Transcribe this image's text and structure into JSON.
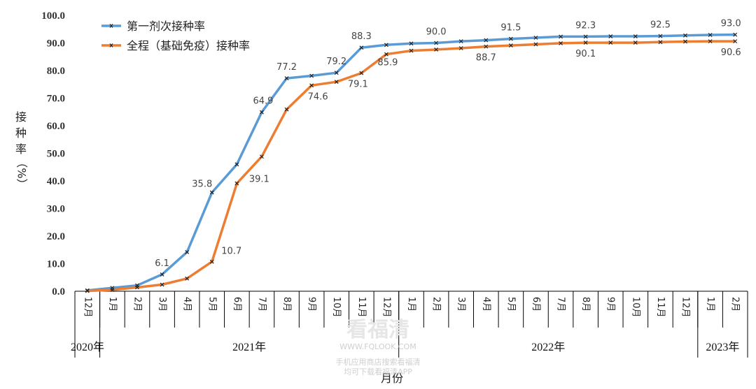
{
  "chart_data": {
    "type": "line",
    "ylabel": "接种率（%）",
    "xlabel": "月份",
    "ylim": [
      0,
      100
    ],
    "y_ticks": [
      "0.0",
      "10.0",
      "20.0",
      "30.0",
      "40.0",
      "50.0",
      "60.0",
      "70.0",
      "80.0",
      "90.0",
      "100.0"
    ],
    "categories": [
      "12月",
      "1月",
      "2月",
      "3月",
      "4月",
      "5月",
      "6月",
      "7月",
      "8月",
      "9月",
      "10月",
      "11月",
      "12月",
      "1月",
      "2月",
      "3月",
      "4月",
      "5月",
      "6月",
      "7月",
      "8月",
      "9月",
      "10月",
      "11月",
      "12月",
      "1月",
      "2月"
    ],
    "year_groups": [
      {
        "label": "2020年",
        "start": 0,
        "end": 0
      },
      {
        "label": "2021年",
        "start": 1,
        "end": 12
      },
      {
        "label": "2022年",
        "start": 13,
        "end": 24
      },
      {
        "label": "2023年",
        "start": 25,
        "end": 26
      }
    ],
    "series": [
      {
        "name": "第一剂次接种率",
        "color": "#5b9bd5",
        "values": [
          0.3,
          1.2,
          2.1,
          6.1,
          14.2,
          35.8,
          46.0,
          64.9,
          77.2,
          78.1,
          79.2,
          88.3,
          89.3,
          89.8,
          90.0,
          90.6,
          91.0,
          91.5,
          91.9,
          92.3,
          92.3,
          92.4,
          92.4,
          92.5,
          92.7,
          92.9,
          93.0
        ],
        "labels": {
          "3": "6.1",
          "5": "35.8",
          "7": "64.9",
          "8": "77.2",
          "10": "79.2",
          "11": "88.3",
          "14": "90.0",
          "17": "91.5",
          "20": "92.3",
          "23": "92.5",
          "26": "93.0"
        }
      },
      {
        "name": "全程（基础免疫）接种率",
        "color": "#ed7d31",
        "values": [
          0.1,
          0.5,
          1.4,
          2.4,
          4.6,
          10.7,
          39.1,
          48.8,
          65.9,
          74.6,
          75.9,
          79.1,
          85.9,
          87.2,
          87.6,
          88.1,
          88.7,
          89.1,
          89.5,
          89.9,
          90.1,
          90.1,
          90.1,
          90.3,
          90.5,
          90.6,
          90.6
        ],
        "labels": {
          "5": "10.7",
          "6": "39.1",
          "9": "74.6",
          "11": "79.1",
          "12": "85.9",
          "16": "88.7",
          "20": "90.1",
          "26": "90.6"
        }
      }
    ]
  },
  "watermark": {
    "logo_text": "看福清",
    "url": "WWW.FQLOOK.COM",
    "line1": "手机应用商店搜索看福清",
    "line2": "均可下载看福清APP"
  }
}
